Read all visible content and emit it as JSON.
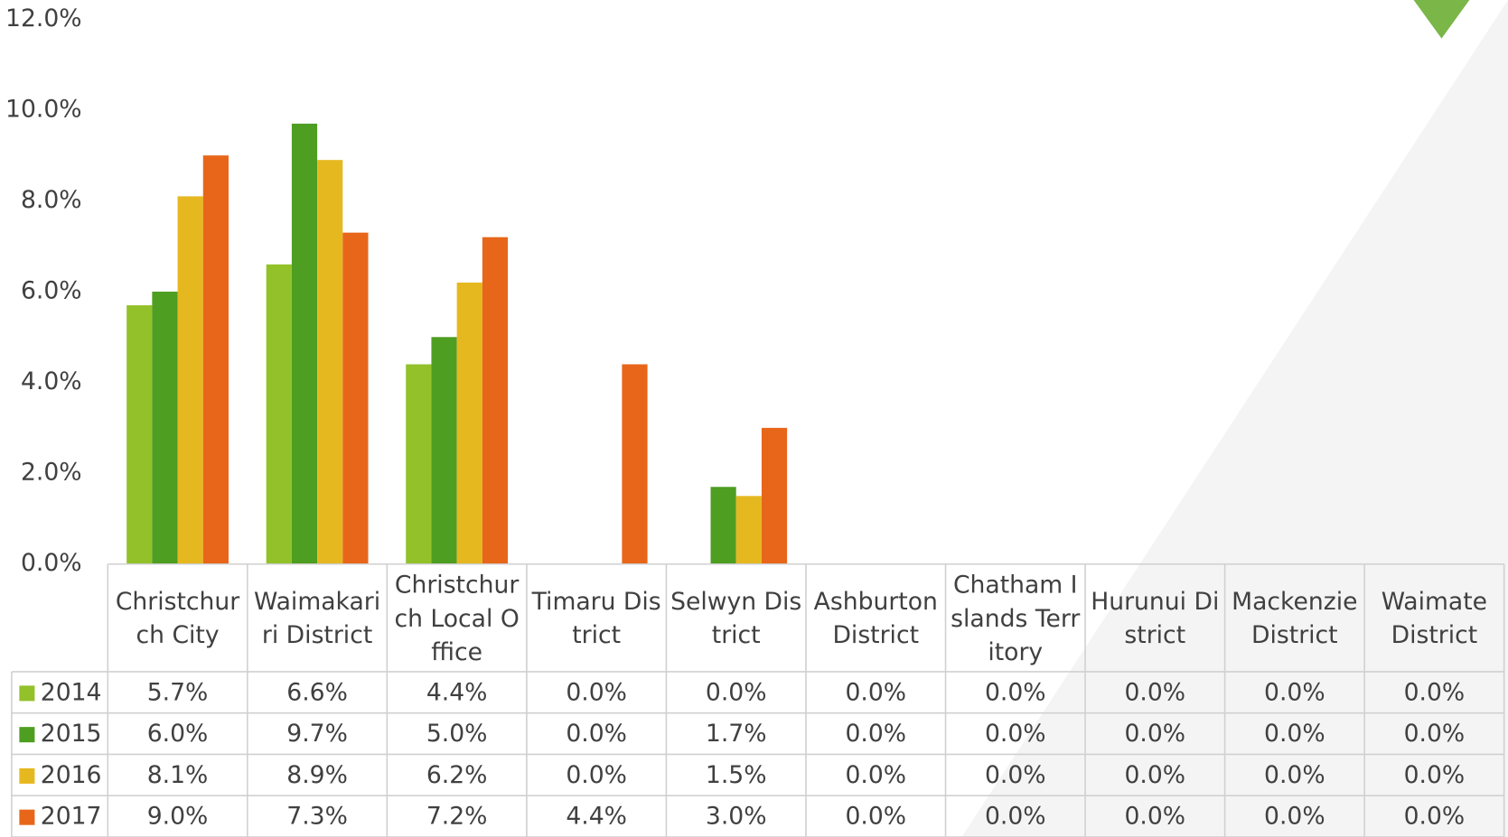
{
  "chart_data": {
    "type": "bar",
    "categories": [
      "Christchurch City",
      "Waimakariri District",
      "Christchurch Local Office",
      "Timaru District",
      "Selwyn District",
      "Ashburton District",
      "Chatham Islands Territory",
      "Hurunui District",
      "Mackenzie District",
      "Waimate District"
    ],
    "series": [
      {
        "name": "2014",
        "color": "#92c12a",
        "values": [
          5.7,
          6.6,
          4.4,
          0,
          0,
          0,
          0,
          0,
          0,
          0
        ],
        "value_labels": [
          "5.7%",
          "6.6%",
          "4.4%",
          "0.0%",
          "0.0%",
          "0.0%",
          "0.0%",
          "0.0%",
          "0.0%",
          "0.0%"
        ]
      },
      {
        "name": "2015",
        "color": "#4e9e22",
        "values": [
          6.0,
          9.7,
          5.0,
          0,
          1.7,
          0,
          0,
          0,
          0,
          0
        ],
        "value_labels": [
          "6.0%",
          "9.7%",
          "5.0%",
          "0.0%",
          "1.7%",
          "0.0%",
          "0.0%",
          "0.0%",
          "0.0%",
          "0.0%"
        ]
      },
      {
        "name": "2016",
        "color": "#e6b820",
        "values": [
          8.1,
          8.9,
          6.2,
          0,
          1.5,
          0,
          0,
          0,
          0,
          0
        ],
        "value_labels": [
          "8.1%",
          "8.9%",
          "6.2%",
          "0.0%",
          "1.5%",
          "0.0%",
          "0.0%",
          "0.0%",
          "0.0%",
          "0.0%"
        ]
      },
      {
        "name": "2017",
        "color": "#e8661a",
        "values": [
          9.0,
          7.3,
          7.2,
          4.4,
          3.0,
          0,
          0,
          0,
          0,
          0
        ],
        "value_labels": [
          "9.0%",
          "7.3%",
          "7.2%",
          "4.4%",
          "3.0%",
          "0.0%",
          "0.0%",
          "0.0%",
          "0.0%",
          "0.0%"
        ]
      }
    ],
    "ylim": [
      0,
      12
    ],
    "yticks": [
      {
        "value": 0,
        "label": "0.0%"
      },
      {
        "value": 2,
        "label": "2.0%"
      },
      {
        "value": 4,
        "label": "4.0%"
      },
      {
        "value": 6,
        "label": "6.0%"
      },
      {
        "value": 8,
        "label": "8.0%"
      },
      {
        "value": 10,
        "label": "10.0%"
      },
      {
        "value": 12,
        "label": "12.0%"
      }
    ]
  }
}
